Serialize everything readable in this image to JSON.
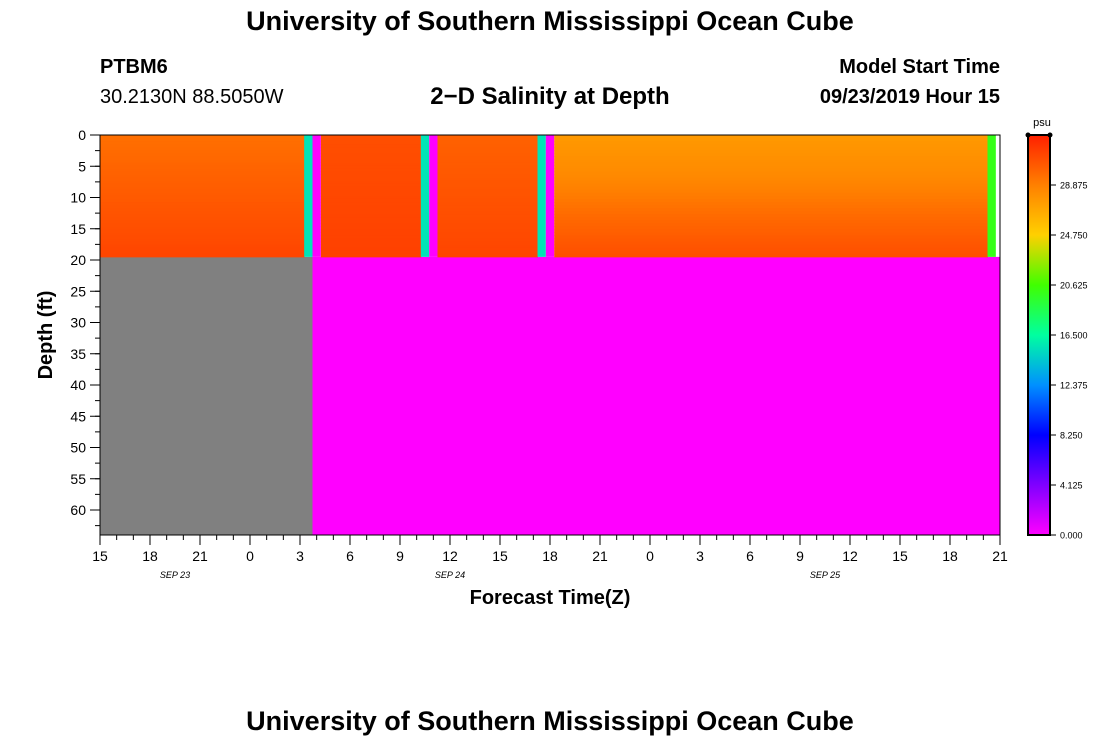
{
  "header": {
    "title": "University of Southern Mississippi Ocean Cube",
    "station_id": "PTBM6",
    "station_coords": "30.2130N 88.5050W",
    "plot_title": "2−D Salinity at Depth",
    "model_start_label": "Model Start Time",
    "model_start_value": "09/23/2019 Hour 15"
  },
  "footer": {
    "title": "University of Southern Mississippi Ocean Cube"
  },
  "chart_data": {
    "type": "heatmap",
    "title": "2−D Salinity at Depth",
    "xlabel": "Forecast Time(Z)",
    "ylabel": "Depth (ft)",
    "x_range_hours": [
      0,
      54
    ],
    "y_range_ft": [
      0,
      64
    ],
    "x_tick_labels": [
      "15",
      "18",
      "21",
      "0",
      "3",
      "6",
      "9",
      "12",
      "15",
      "18",
      "21",
      "0",
      "3",
      "6",
      "9",
      "12",
      "15",
      "18",
      "21"
    ],
    "x_tick_hours": [
      0,
      3,
      6,
      9,
      12,
      15,
      18,
      21,
      24,
      27,
      30,
      33,
      36,
      39,
      42,
      45,
      48,
      51,
      54
    ],
    "date_labels": [
      {
        "text": "SEP 23",
        "hour": 4.5
      },
      {
        "text": "SEP 24",
        "hour": 21
      },
      {
        "text": "SEP 25",
        "hour": 43.5
      }
    ],
    "y_ticks": [
      0,
      5,
      10,
      15,
      20,
      25,
      30,
      35,
      40,
      45,
      50,
      55,
      60
    ],
    "data_depth_limit_ft": 19.5,
    "bottom_column_end_hour": 12.75,
    "water_columns": [
      {
        "start_hour": 0,
        "end_hour": 12.25,
        "values": [
          29.6,
          30.2,
          30.8,
          31.4
        ]
      },
      {
        "start_hour": 13.25,
        "end_hour": 19.25,
        "values": [
          31.0,
          31.2,
          31.4,
          31.6
        ]
      },
      {
        "start_hour": 20.25,
        "end_hour": 26.25,
        "values": [
          30.2,
          30.6,
          31.0,
          31.4
        ]
      },
      {
        "start_hour": 27.25,
        "end_hour": 53.25,
        "values": [
          27.6,
          28.4,
          29.8,
          31.0
        ]
      }
    ],
    "bar_columns": [
      {
        "start_hour": 12.25,
        "end_hour": 12.75,
        "salinity": 15.5
      },
      {
        "start_hour": 12.75,
        "end_hour": 13.25,
        "salinity": 0.0
      },
      {
        "start_hour": 19.25,
        "end_hour": 19.75,
        "salinity": 15.5
      },
      {
        "start_hour": 19.75,
        "end_hour": 20.25,
        "salinity": 0.0
      },
      {
        "start_hour": 26.25,
        "end_hour": 26.75,
        "salinity": 15.5
      },
      {
        "start_hour": 26.75,
        "end_hour": 27.25,
        "salinity": 0.0
      },
      {
        "start_hour": 53.25,
        "end_hour": 53.75,
        "salinity": 20.0
      }
    ],
    "colorbar": {
      "unit": "psu",
      "min": 0.0,
      "max": 33.0,
      "tick_values": [
        0.0,
        4.125,
        8.25,
        12.375,
        16.5,
        20.625,
        24.75,
        28.875
      ],
      "tick_labels": [
        "0.000",
        "4.125",
        "8.250",
        "12.375",
        "16.500",
        "20.625",
        "24.750",
        "28.875"
      ]
    },
    "land_color": "#808080",
    "no_data_color": "#ff00ff"
  }
}
